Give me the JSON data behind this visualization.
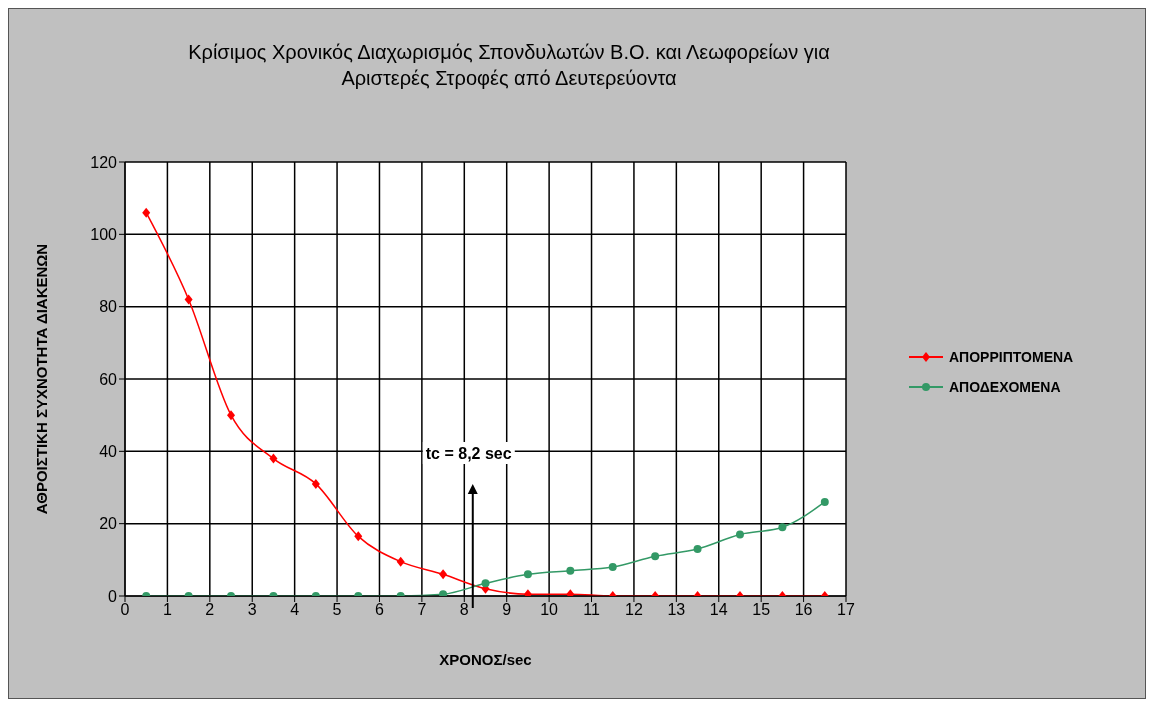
{
  "chart_data": {
    "type": "line",
    "title": "Κρίσιμος Χρονικός Διαχωρισμός Σπονδυλωτών Β.Ο. και Λεωφορείων για Αριστερές Στροφές από Δευτερεύοντα",
    "xlabel": "ΧΡΟΝΟΣ/sec",
    "ylabel": "ΑΘΡΟΙΣΤΙΚΗ ΣΥΧΝΟΤΗΤΑ ΔΙΑΚΕΝΩΝ",
    "x": [
      0.5,
      1.5,
      2.5,
      3.5,
      4.5,
      5.5,
      6.5,
      7.5,
      8.5,
      9.5,
      10.5,
      11.5,
      12.5,
      13.5,
      14.5,
      15.5,
      16.5
    ],
    "series": [
      {
        "name": "ΑΠΟΡΡΙΠΤΟΜΕΝΑ",
        "color": "#ff0000",
        "marker": "diamond",
        "values": [
          106,
          82,
          50,
          38,
          31,
          16.5,
          9.5,
          6,
          2,
          0.5,
          0.5,
          0,
          0,
          0,
          0,
          0,
          0
        ]
      },
      {
        "name": "ΑΠΟΔΕΧΟΜΕΝΑ",
        "color": "#339966",
        "marker": "circle",
        "values": [
          0,
          0,
          0,
          0,
          0,
          0,
          0,
          0.5,
          3.5,
          6,
          7,
          8,
          11,
          13,
          17,
          19,
          26
        ]
      }
    ],
    "xlim": [
      0,
      17
    ],
    "xticks": [
      0,
      1,
      2,
      3,
      4,
      5,
      6,
      7,
      8,
      9,
      10,
      11,
      12,
      13,
      14,
      15,
      16,
      17
    ],
    "ylim": [
      0,
      120
    ],
    "yticks": [
      0,
      20,
      40,
      60,
      80,
      100,
      120
    ],
    "grid": true,
    "legend": "right",
    "line_style": "solid",
    "ref_lines": [
      {
        "axis": "x",
        "value": 8.2,
        "label": "tc = 8,2 sec"
      }
    ]
  }
}
